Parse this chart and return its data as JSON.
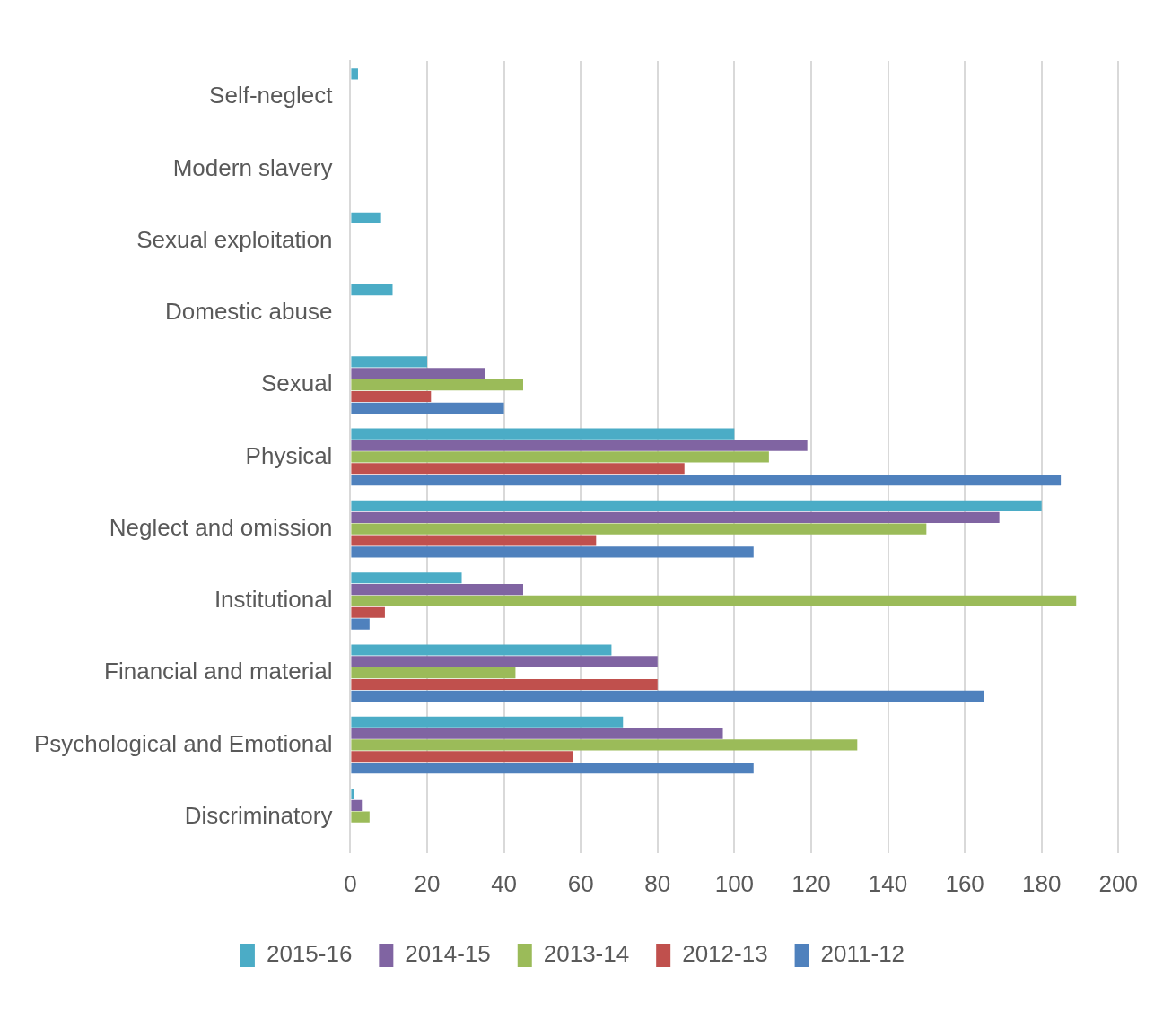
{
  "chart_data": {
    "type": "bar",
    "orientation": "horizontal",
    "categories": [
      "Self-neglect",
      "Modern slavery",
      "Sexual exploitation",
      "Domestic abuse",
      "Sexual",
      "Physical",
      "Neglect and omission",
      "Institutional",
      "Financial and material",
      "Psychological and Emotional",
      "Discriminatory"
    ],
    "series": [
      {
        "name": "2015-16",
        "color": "#4bacc6",
        "values": [
          2,
          null,
          8,
          11,
          20,
          100,
          180,
          29,
          68,
          71,
          1
        ]
      },
      {
        "name": "2014-15",
        "color": "#8064a2",
        "values": [
          null,
          null,
          null,
          null,
          35,
          119,
          169,
          45,
          80,
          97,
          3
        ]
      },
      {
        "name": "2013-14",
        "color": "#9bbb59",
        "values": [
          null,
          null,
          null,
          null,
          45,
          109,
          150,
          189,
          43,
          132,
          5
        ]
      },
      {
        "name": "2012-13",
        "color": "#c0504d",
        "values": [
          null,
          null,
          null,
          null,
          21,
          87,
          64,
          9,
          80,
          58,
          null
        ]
      },
      {
        "name": "2011-12",
        "color": "#4f81bd",
        "values": [
          null,
          null,
          null,
          null,
          40,
          185,
          105,
          5,
          165,
          105,
          null
        ]
      }
    ],
    "xlim": [
      0,
      200
    ],
    "xticks": [
      0,
      20,
      40,
      60,
      80,
      100,
      120,
      140,
      160,
      180,
      200
    ],
    "grid": "x",
    "legend": "bottom"
  }
}
